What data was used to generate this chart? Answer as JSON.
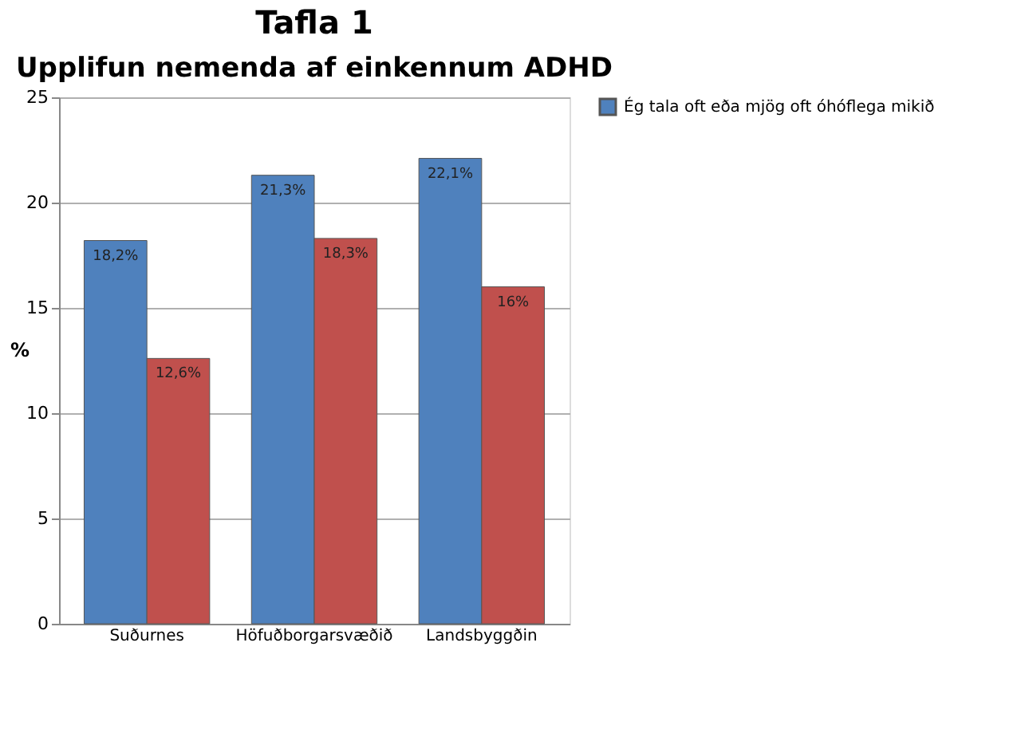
{
  "chart_data": {
    "type": "bar",
    "title": "Tafla 1",
    "subtitle": "Upplifun nemenda af einkennum ADHD",
    "ylabel": "%",
    "categories": [
      "Suðurnes",
      "Höfuðborgarsvæðið",
      "Landsbyggðin"
    ],
    "series": [
      {
        "name": "Ég tala oft eða mjög oft óhóflega mikið",
        "color": "#4f81bd",
        "values": [
          18.2,
          21.3,
          22.1
        ],
        "value_labels": [
          "18,2%",
          "21,3%",
          "22,1%"
        ]
      },
      {
        "color": "#c0504d",
        "values": [
          12.6,
          18.3,
          16
        ],
        "value_labels": [
          "12,6%",
          "18,3%",
          "16%"
        ]
      }
    ],
    "ylim": [
      0,
      25
    ],
    "yticks": [
      0,
      5,
      10,
      15,
      20,
      25
    ],
    "grid": "y",
    "legend": "right"
  }
}
